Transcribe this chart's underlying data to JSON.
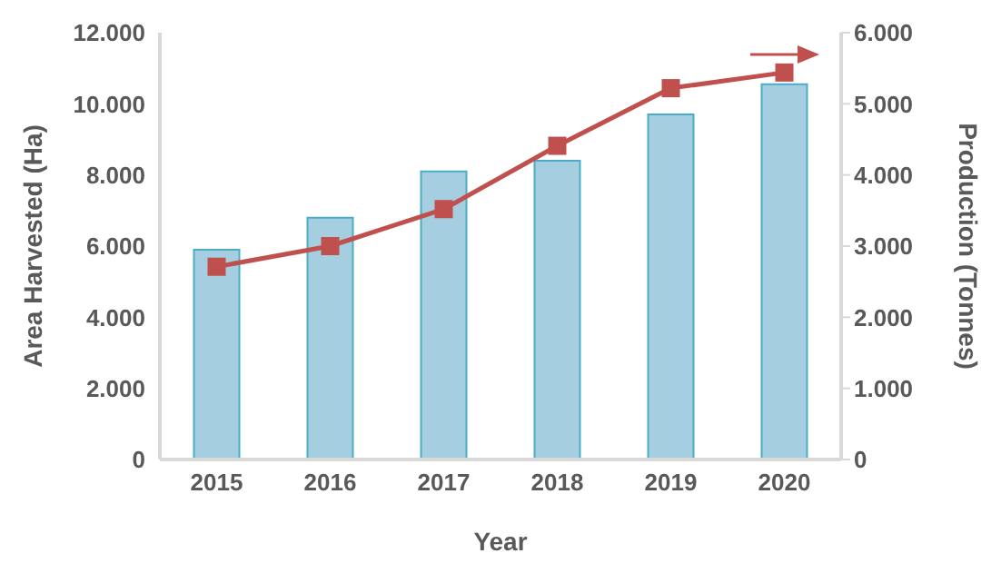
{
  "chart_data": {
    "type": "bar",
    "xlabel": "Year",
    "ylabel": "Area Harvested (Ha)",
    "y2label": "Production (Tonnes)",
    "categories": [
      "2015",
      "2016",
      "2017",
      "2018",
      "2019",
      "2020"
    ],
    "series": [
      {
        "color": "#a5cfe0",
        "values": [
          5900,
          6800,
          8100,
          8400,
          9700,
          10550
        ]
      },
      {
        "type": "line",
        "axis": "y2",
        "color": "#c0504d",
        "marker": "square",
        "values": [
          2710,
          3000,
          3520,
          4410,
          5220,
          5440
        ]
      }
    ],
    "ylim": [
      0,
      12000
    ],
    "yticks": [
      0,
      {
        "value": 2000,
        "label": "2.000"
      },
      {
        "value": 4000,
        "label": "4.000"
      },
      {
        "value": 6000,
        "label": "6.000"
      },
      {
        "value": 8000,
        "label": "8.000"
      },
      {
        "value": 10000,
        "label": "10.000"
      },
      {
        "value": 12000,
        "label": "12.000"
      }
    ],
    "y2lim": [
      0,
      6000
    ],
    "y2ticks": [
      0,
      {
        "value": 1000,
        "label": "1.000"
      },
      {
        "value": 2000,
        "label": "2.000"
      },
      {
        "value": 3000,
        "label": "3.000"
      },
      {
        "value": 4000,
        "label": "4.000"
      },
      {
        "value": 5000,
        "label": "5.000"
      },
      {
        "value": 6000,
        "label": "6.000"
      }
    ],
    "grid": false,
    "legend": false
  }
}
